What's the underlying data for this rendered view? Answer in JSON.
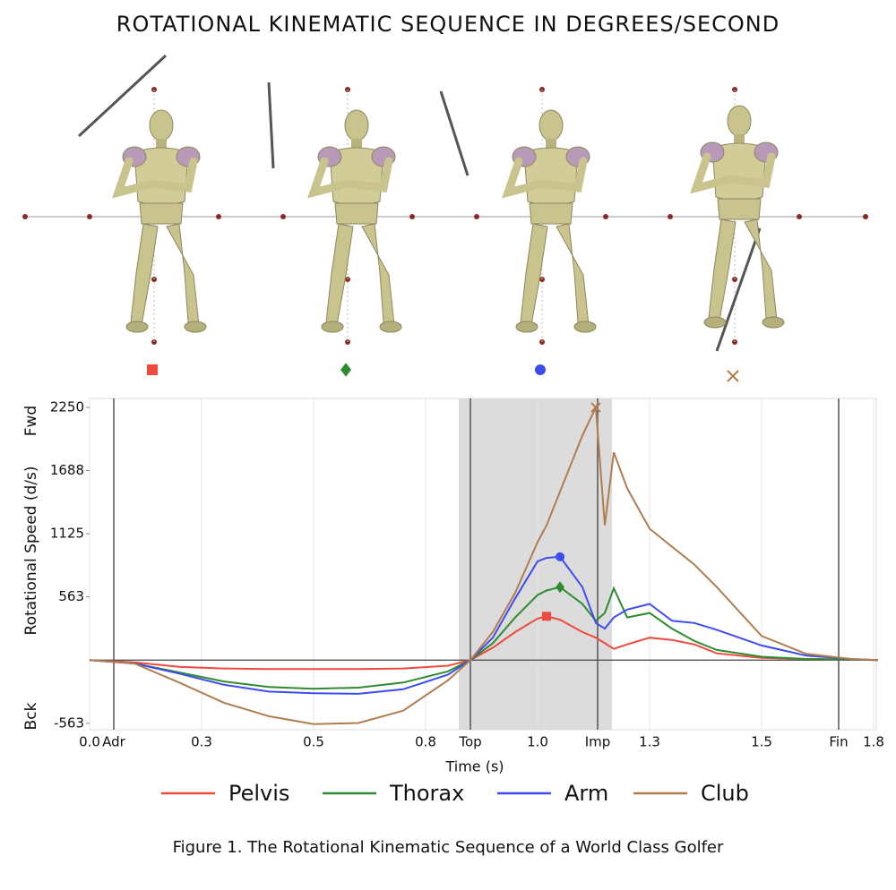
{
  "chart_data": {
    "type": "line",
    "title": "ROTATIONAL KINEMATIC SEQUENCE IN DEGREES/SECOND",
    "caption": "Figure 1. The Rotational Kinematic Sequence of a World Class Golfer",
    "x_label": "Time (s)",
    "y_label": "Rotational Speed (d/s)",
    "y_direction_labels": {
      "top": "Fwd",
      "bottom": "Bck"
    },
    "x": [
      0,
      0.1,
      0.2,
      0.3,
      0.4,
      0.5,
      0.6,
      0.7,
      0.8,
      0.85,
      0.9,
      0.95,
      1.0,
      1.02,
      1.05,
      1.1,
      1.13,
      1.15,
      1.17,
      1.2,
      1.25,
      1.3,
      1.35,
      1.4,
      1.5,
      1.6,
      1.7,
      1.76
    ],
    "series": [
      {
        "name": "Pelvis",
        "color": "#f04a3e",
        "marker": "square",
        "values": [
          0,
          -20,
          -60,
          -75,
          -80,
          -80,
          -80,
          -75,
          -50,
          0,
          110,
          250,
          370,
          390,
          360,
          250,
          200,
          150,
          100,
          140,
          200,
          180,
          140,
          60,
          20,
          10,
          5,
          0
        ]
      },
      {
        "name": "Thorax",
        "color": "#2e8b2e",
        "marker": "diamond",
        "values": [
          0,
          -30,
          -110,
          -190,
          -240,
          -255,
          -245,
          -200,
          -100,
          0,
          150,
          380,
          580,
          620,
          650,
          500,
          350,
          420,
          640,
          380,
          420,
          280,
          170,
          90,
          30,
          10,
          5,
          0
        ]
      },
      {
        "name": "Arm",
        "color": "#3d4cf0",
        "marker": "circle",
        "values": [
          0,
          -30,
          -120,
          -220,
          -280,
          -295,
          -300,
          -260,
          -130,
          0,
          200,
          550,
          880,
          910,
          920,
          650,
          330,
          280,
          380,
          450,
          500,
          350,
          330,
          270,
          130,
          40,
          10,
          0
        ]
      },
      {
        "name": "Club",
        "color": "#b07d4f",
        "marker": "x",
        "values": [
          0,
          -30,
          -200,
          -380,
          -500,
          -570,
          -560,
          -450,
          -180,
          0,
          250,
          600,
          1050,
          1200,
          1500,
          2000,
          2250,
          1200,
          1850,
          1530,
          1170,
          1010,
          850,
          650,
          215,
          55,
          10,
          0
        ]
      }
    ],
    "xlim": [
      0,
      1.756
    ],
    "ylim": [
      -620,
      2330
    ],
    "xticks": [
      {
        "value": 0,
        "label": "0.0"
      },
      {
        "value": 0.25,
        "label": "0.3"
      },
      0.5,
      {
        "value": 0.75,
        "label": "0.8"
      },
      {
        "value": 1,
        "label": "1.0"
      },
      {
        "value": 1.25,
        "label": "1.3"
      },
      1.5,
      {
        "value": 1.75,
        "label": "1.8"
      }
    ],
    "yticks": [
      -563,
      563,
      1125,
      1688,
      2250
    ],
    "event_lines": [
      {
        "value": 0.054,
        "label": "Adr"
      },
      {
        "value": 0.85,
        "label": "Top"
      },
      {
        "value": 1.134,
        "label": "Imp"
      },
      {
        "value": 1.672,
        "label": "Fin"
      }
    ],
    "shaded_range": [
      0.824,
      1.166
    ],
    "grid": "x"
  }
}
